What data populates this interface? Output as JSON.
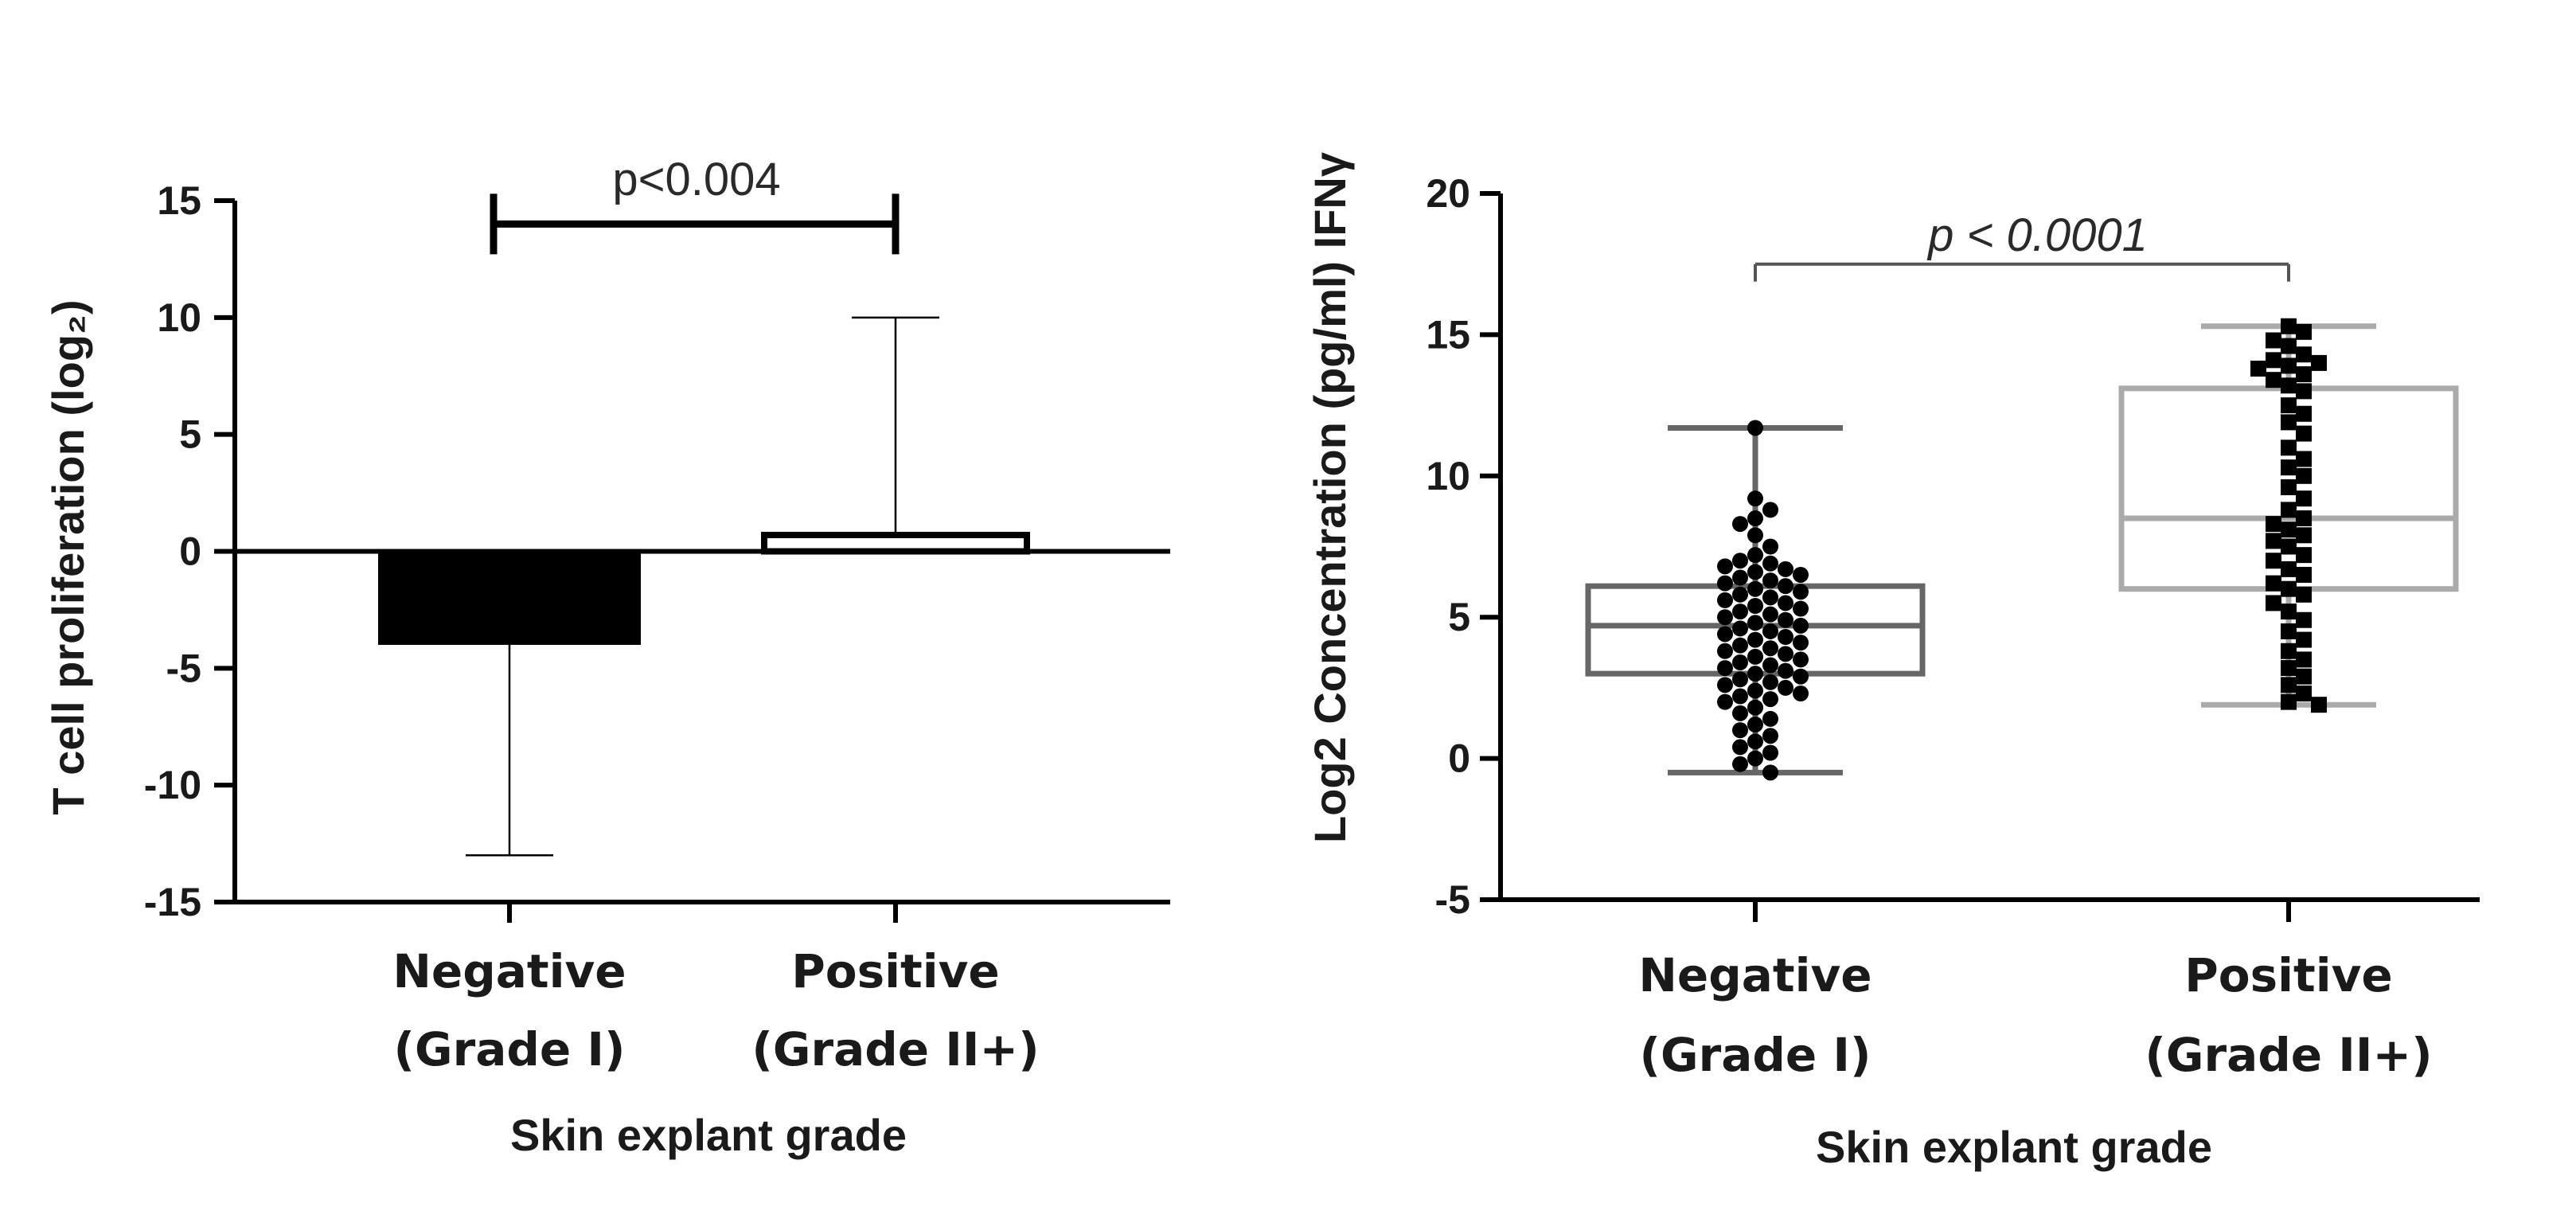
{
  "chart_data": [
    {
      "type": "bar",
      "categories": [
        {
          "line1": "Negative",
          "line2": "(Grade I)"
        },
        {
          "line1": "Positive",
          "line2": "(Grade II+)"
        }
      ],
      "values": [
        -4.0,
        0.7
      ],
      "error_bars": [
        {
          "lower": -13.0,
          "upper": -4.0
        },
        {
          "lower": 0.7,
          "upper": 10.0
        }
      ],
      "ylim": [
        -15,
        15
      ],
      "yticks": [
        -15,
        -10,
        -5,
        0,
        5,
        10,
        15
      ],
      "ylabel": "T cell proliferation (log₂)",
      "xlabel": "Skin explant grade",
      "significance": {
        "label": "p<0.004",
        "from": 0,
        "to": 1,
        "y": 14.0
      },
      "colors": {
        "bar": "#000000",
        "axis": "#000000"
      }
    },
    {
      "type": "box_scatter",
      "categories": [
        {
          "line1": "Negative",
          "line2": "(Grade I)"
        },
        {
          "line1": "Positive",
          "line2": "(Grade II+)"
        }
      ],
      "boxes": [
        {
          "min": -0.5,
          "q1": 3.0,
          "median": 4.7,
          "q3": 6.1,
          "max": 11.7,
          "color": "#666666"
        },
        {
          "min": 1.9,
          "q1": 6.0,
          "median": 8.5,
          "q3": 13.1,
          "max": 15.3,
          "color": "#aaaaaa"
        }
      ],
      "points": [
        [
          11.7,
          9.2,
          8.8,
          8.5,
          8.3,
          7.9,
          7.5,
          7.2,
          7.0,
          6.9,
          6.8,
          6.7,
          6.6,
          6.5,
          6.4,
          6.3,
          6.2,
          6.1,
          6.0,
          5.9,
          5.8,
          5.7,
          5.6,
          5.5,
          5.4,
          5.3,
          5.2,
          5.1,
          5.0,
          4.9,
          4.8,
          4.7,
          4.6,
          4.5,
          4.4,
          4.3,
          4.2,
          4.1,
          4.0,
          3.9,
          3.8,
          3.7,
          3.6,
          3.5,
          3.4,
          3.3,
          3.2,
          3.1,
          3.0,
          2.9,
          2.8,
          2.7,
          2.6,
          2.5,
          2.4,
          2.3,
          2.2,
          2.1,
          2.0,
          1.8,
          1.6,
          1.4,
          1.2,
          1.0,
          0.8,
          0.6,
          0.4,
          0.2,
          0.0,
          -0.2,
          -0.5
        ],
        [
          15.3,
          15.1,
          14.8,
          14.6,
          14.3,
          14.1,
          14.0,
          13.9,
          13.8,
          13.6,
          13.4,
          13.2,
          13.0,
          12.5,
          12.2,
          11.9,
          11.5,
          11.0,
          10.6,
          10.3,
          10.0,
          9.6,
          9.2,
          8.8,
          8.5,
          8.3,
          8.1,
          7.9,
          7.7,
          7.5,
          7.2,
          7.0,
          6.7,
          6.5,
          6.2,
          6.0,
          5.8,
          5.5,
          5.2,
          4.9,
          4.5,
          4.2,
          3.8,
          3.5,
          3.2,
          2.9,
          2.6,
          2.3,
          2.0,
          1.9
        ]
      ],
      "ylim": [
        -5,
        20
      ],
      "yticks": [
        -5,
        0,
        5,
        10,
        15,
        20
      ],
      "ylabel": "Log2 Concentration (pg/ml) IFNγ",
      "xlabel": "Skin explant grade",
      "significance": {
        "label": "p < 0.0001",
        "from": 0,
        "to": 1,
        "y": 17.5
      },
      "colors": {
        "point": "#000000",
        "axis": "#000000",
        "bracket": "#555555"
      }
    }
  ]
}
